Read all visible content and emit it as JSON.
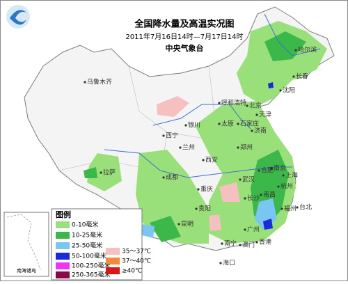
{
  "header": {
    "title": "全国降水量及高温实况图",
    "subtitle": "2011年7月16日14时—7月17日14时",
    "issuer": "中央气象台"
  },
  "legend": {
    "title": "图例",
    "items": [
      {
        "label": "0-10毫米",
        "color": "#99e07a"
      },
      {
        "label": "10-25毫米",
        "color": "#3cb84a"
      },
      {
        "label": "25-50毫米",
        "color": "#79c6f2"
      },
      {
        "label": "50-100毫米",
        "color": "#1a2cd8"
      },
      {
        "label": "100-250毫米",
        "color": "#f036f0"
      },
      {
        "label": "250-365毫米",
        "color": "#8a0848"
      },
      {
        "label": "35～37℃",
        "color": "#f6c0c0"
      },
      {
        "label": "37～40℃",
        "color": "#f08a3c"
      },
      {
        "label": "≥40℃",
        "color": "#d81818"
      }
    ]
  },
  "cities": [
    "哈尔滨",
    "长春",
    "沈阳",
    "乌鲁木齐",
    "呼和浩特",
    "北京",
    "天津",
    "石家庄",
    "太原",
    "济南",
    "银川",
    "西宁",
    "兰州",
    "郑州",
    "西安",
    "合肥",
    "南京",
    "上海",
    "杭州",
    "武汉",
    "拉萨",
    "成都",
    "重庆",
    "长沙",
    "南昌",
    "福州",
    "贵阳",
    "昆明",
    "广州",
    "南宁",
    "海口",
    "台北",
    "香港",
    "澳门"
  ],
  "inset_label": "南海诸岛"
}
